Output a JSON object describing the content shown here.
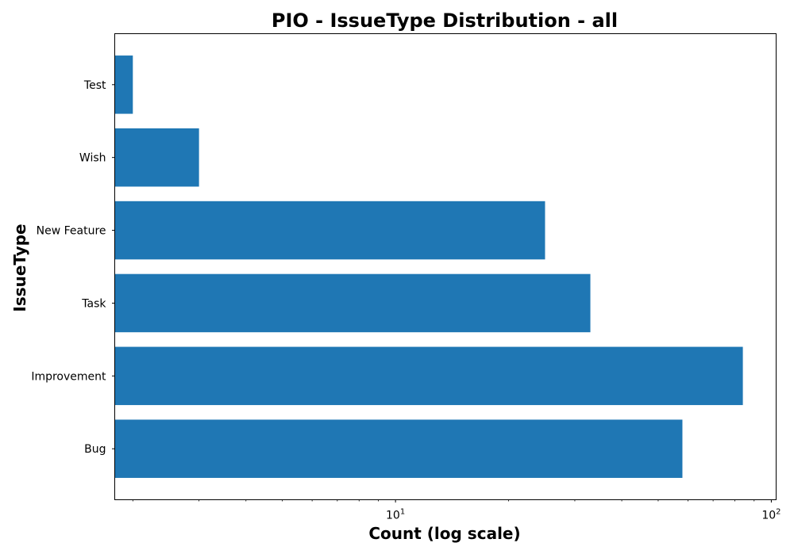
{
  "chart_data": {
    "type": "bar",
    "orientation": "horizontal",
    "title": "PIO - IssueType Distribution - all",
    "xlabel": "Count (log scale)",
    "ylabel": "IssueType",
    "x_scale": "log",
    "xlim": [
      1.79,
      103
    ],
    "x_major_ticks": [
      {
        "value": 10,
        "base": "10",
        "exponent": "1"
      },
      {
        "value": 100,
        "base": "10",
        "exponent": "2"
      }
    ],
    "categories": [
      "Bug",
      "Improvement",
      "Task",
      "New Feature",
      "Wish",
      "Test"
    ],
    "values": [
      58,
      84,
      33,
      25,
      3,
      2
    ],
    "bar_color": "#1f77b4",
    "grid": false,
    "legend": "none"
  }
}
